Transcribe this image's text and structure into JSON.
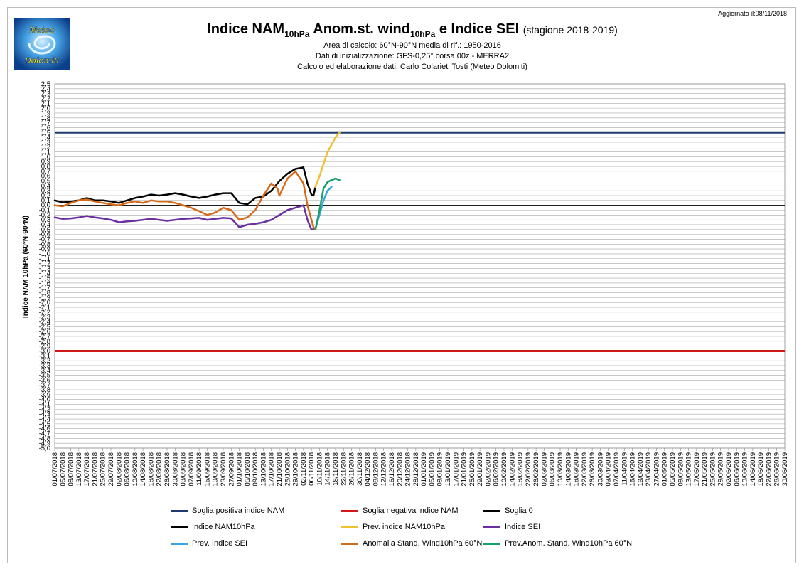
{
  "header": {
    "updated": "Aggiornato il:08/11/2018",
    "title_main": "Indice NAM",
    "title_sub1": "10hPa",
    "title_mid": " Anom.st. wind",
    "title_sub2": "10hPa",
    "title_end": " e Indice SEI ",
    "title_season": "(stagione 2018-2019)",
    "line1": "Area di calcolo: 60°N-90°N media di rif.: 1950-2016",
    "line2": "Dati di inizializzazione: GFS-0,25° corsa 00z - MERRA2",
    "line3": "Calcolo ed elaborazione dati: Carlo Colarieti Tosti (Meteo Dolomiti)"
  },
  "logo": {
    "line1": "Meteo",
    "line2": "Dolomiti"
  },
  "colors": {
    "nam_pos": "#1f3a6e",
    "nam_neg": "#d01818",
    "zero": "#000000",
    "nam": "#000000",
    "nam_prev": "#f0c030",
    "sei": "#6a2fa0",
    "sei_prev": "#3aa6dc",
    "wind": "#d46a1a",
    "wind_prev": "#1aa06a"
  },
  "chart_data": {
    "type": "line",
    "title": "Indice NAM10hPa Anom.st. wind10hPa e Indice SEI (stagione 2018-2019)",
    "ylabel": "Indice NAM 10hPa (60°N-90°N)",
    "xlabel": "",
    "ylim": [
      -5.0,
      2.5
    ],
    "y_step": 0.1,
    "grid": true,
    "legend_position": "bottom",
    "x_start": "01/07/2018",
    "x_end": "30/06/2019",
    "x_tick_every_days": 4,
    "x_ticks": [
      "01/07/2018",
      "05/07/2018",
      "09/07/2018",
      "13/07/2018",
      "17/07/2018",
      "21/07/2018",
      "25/07/2018",
      "29/07/2018",
      "02/08/2018",
      "06/08/2018",
      "10/08/2018",
      "14/08/2018",
      "18/08/2018",
      "22/08/2018",
      "26/08/2018",
      "30/08/2018",
      "03/09/2018",
      "07/09/2018",
      "11/09/2018",
      "15/09/2018",
      "19/09/2018",
      "23/09/2018",
      "27/09/2018",
      "01/10/2018",
      "05/10/2018",
      "09/10/2018",
      "13/10/2018",
      "17/10/2018",
      "21/10/2018",
      "25/10/2018",
      "29/10/2018",
      "02/11/2018",
      "06/11/2018",
      "10/11/2018",
      "14/11/2018",
      "18/11/2018",
      "22/11/2018",
      "26/11/2018",
      "30/11/2018",
      "04/12/2018",
      "08/12/2018",
      "12/12/2018",
      "16/12/2018",
      "20/12/2018",
      "24/12/2018",
      "28/12/2018",
      "01/01/2019",
      "05/01/2019",
      "09/01/2019",
      "13/01/2019",
      "17/01/2019",
      "21/01/2019",
      "25/01/2019",
      "29/01/2019",
      "02/02/2019",
      "06/02/2019",
      "10/02/2019",
      "14/02/2019",
      "18/02/2019",
      "22/02/2019",
      "26/02/2019",
      "02/03/2019",
      "06/03/2019",
      "10/03/2019",
      "14/03/2019",
      "18/03/2019",
      "22/03/2019",
      "26/03/2019",
      "30/03/2019",
      "03/04/2019",
      "07/04/2019",
      "11/04/2019",
      "15/04/2019",
      "19/04/2019",
      "23/04/2019",
      "27/04/2019",
      "01/05/2019",
      "05/05/2019",
      "09/05/2019",
      "13/05/2019",
      "17/05/2019",
      "21/05/2019",
      "25/05/2019",
      "29/05/2019",
      "02/06/2019",
      "06/06/2019",
      "10/06/2019",
      "14/06/2019",
      "18/06/2019",
      "22/06/2019",
      "26/06/2019",
      "30/06/2019"
    ],
    "series": [
      {
        "name": "Soglia positiva indice NAM",
        "kind": "hline",
        "value": 1.5,
        "color": "#1f3a6e",
        "width": 3
      },
      {
        "name": "Soglia negativa indice NAM",
        "kind": "hline",
        "value": -3.0,
        "color": "#d01818",
        "width": 3
      },
      {
        "name": "Soglia 0",
        "kind": "hline",
        "value": 0.0,
        "color": "#000000",
        "width": 1
      },
      {
        "name": "Indice NAM10hPa",
        "color": "#000000",
        "width": 2.5,
        "points": [
          [
            "01/07/2018",
            0.1
          ],
          [
            "05/07/2018",
            0.06
          ],
          [
            "09/07/2018",
            0.08
          ],
          [
            "13/07/2018",
            0.1
          ],
          [
            "17/07/2018",
            0.15
          ],
          [
            "21/07/2018",
            0.1
          ],
          [
            "25/07/2018",
            0.1
          ],
          [
            "29/07/2018",
            0.08
          ],
          [
            "02/08/2018",
            0.05
          ],
          [
            "06/08/2018",
            0.1
          ],
          [
            "10/08/2018",
            0.15
          ],
          [
            "14/08/2018",
            0.18
          ],
          [
            "18/08/2018",
            0.22
          ],
          [
            "22/08/2018",
            0.2
          ],
          [
            "26/08/2018",
            0.22
          ],
          [
            "30/08/2018",
            0.25
          ],
          [
            "03/09/2018",
            0.22
          ],
          [
            "07/09/2018",
            0.18
          ],
          [
            "11/09/2018",
            0.15
          ],
          [
            "15/09/2018",
            0.18
          ],
          [
            "19/09/2018",
            0.22
          ],
          [
            "23/09/2018",
            0.25
          ],
          [
            "27/09/2018",
            0.25
          ],
          [
            "01/10/2018",
            0.05
          ],
          [
            "05/10/2018",
            0.02
          ],
          [
            "09/10/2018",
            0.15
          ],
          [
            "13/10/2018",
            0.18
          ],
          [
            "17/10/2018",
            0.3
          ],
          [
            "21/10/2018",
            0.5
          ],
          [
            "25/10/2018",
            0.65
          ],
          [
            "29/10/2018",
            0.75
          ],
          [
            "02/11/2018",
            0.78
          ],
          [
            "04/11/2018",
            0.45
          ],
          [
            "06/11/2018",
            0.22
          ],
          [
            "07/11/2018",
            0.2
          ],
          [
            "08/11/2018",
            0.38
          ]
        ]
      },
      {
        "name": "Prev. indice NAM10hPa",
        "color": "#f0c030",
        "width": 2.5,
        "points": [
          [
            "08/11/2018",
            0.38
          ],
          [
            "10/11/2018",
            0.6
          ],
          [
            "12/11/2018",
            0.85
          ],
          [
            "14/11/2018",
            1.1
          ],
          [
            "16/11/2018",
            1.25
          ],
          [
            "18/11/2018",
            1.4
          ],
          [
            "20/11/2018",
            1.5
          ]
        ]
      },
      {
        "name": "Indice SEI",
        "color": "#6a2fa0",
        "width": 2.5,
        "points": [
          [
            "01/07/2018",
            -0.25
          ],
          [
            "05/07/2018",
            -0.28
          ],
          [
            "09/07/2018",
            -0.27
          ],
          [
            "13/07/2018",
            -0.25
          ],
          [
            "17/07/2018",
            -0.22
          ],
          [
            "21/07/2018",
            -0.25
          ],
          [
            "25/07/2018",
            -0.27
          ],
          [
            "29/07/2018",
            -0.3
          ],
          [
            "02/08/2018",
            -0.35
          ],
          [
            "06/08/2018",
            -0.33
          ],
          [
            "10/08/2018",
            -0.32
          ],
          [
            "14/08/2018",
            -0.3
          ],
          [
            "18/08/2018",
            -0.28
          ],
          [
            "22/08/2018",
            -0.3
          ],
          [
            "26/08/2018",
            -0.32
          ],
          [
            "30/08/2018",
            -0.3
          ],
          [
            "03/09/2018",
            -0.28
          ],
          [
            "07/09/2018",
            -0.27
          ],
          [
            "11/09/2018",
            -0.26
          ],
          [
            "15/09/2018",
            -0.3
          ],
          [
            "19/09/2018",
            -0.28
          ],
          [
            "23/09/2018",
            -0.26
          ],
          [
            "27/09/2018",
            -0.27
          ],
          [
            "01/10/2018",
            -0.45
          ],
          [
            "05/10/2018",
            -0.4
          ],
          [
            "09/10/2018",
            -0.38
          ],
          [
            "13/10/2018",
            -0.35
          ],
          [
            "17/10/2018",
            -0.3
          ],
          [
            "21/10/2018",
            -0.2
          ],
          [
            "25/10/2018",
            -0.1
          ],
          [
            "29/10/2018",
            -0.05
          ],
          [
            "02/11/2018",
            0.0
          ],
          [
            "04/11/2018",
            -0.3
          ],
          [
            "06/11/2018",
            -0.5
          ],
          [
            "08/11/2018",
            -0.48
          ]
        ]
      },
      {
        "name": "Prev. Indice SEI",
        "color": "#3aa6dc",
        "width": 2.5,
        "points": [
          [
            "08/11/2018",
            -0.48
          ],
          [
            "10/11/2018",
            -0.2
          ],
          [
            "12/11/2018",
            0.1
          ],
          [
            "14/11/2018",
            0.3
          ],
          [
            "16/11/2018",
            0.38
          ]
        ]
      },
      {
        "name": "Anomalia Stand. Wind10hPa 60°N",
        "color": "#d46a1a",
        "width": 2.5,
        "points": [
          [
            "01/07/2018",
            0.0
          ],
          [
            "05/07/2018",
            -0.02
          ],
          [
            "09/07/2018",
            0.05
          ],
          [
            "13/07/2018",
            0.1
          ],
          [
            "17/07/2018",
            0.12
          ],
          [
            "21/07/2018",
            0.08
          ],
          [
            "25/07/2018",
            0.05
          ],
          [
            "29/07/2018",
            0.02
          ],
          [
            "02/08/2018",
            0.0
          ],
          [
            "06/08/2018",
            0.05
          ],
          [
            "10/08/2018",
            0.08
          ],
          [
            "14/08/2018",
            0.05
          ],
          [
            "18/08/2018",
            0.1
          ],
          [
            "22/08/2018",
            0.08
          ],
          [
            "26/08/2018",
            0.08
          ],
          [
            "30/08/2018",
            0.05
          ],
          [
            "03/09/2018",
            0.0
          ],
          [
            "07/09/2018",
            -0.05
          ],
          [
            "11/09/2018",
            -0.12
          ],
          [
            "15/09/2018",
            -0.2
          ],
          [
            "19/09/2018",
            -0.15
          ],
          [
            "23/09/2018",
            -0.05
          ],
          [
            "27/09/2018",
            -0.1
          ],
          [
            "01/10/2018",
            -0.3
          ],
          [
            "05/10/2018",
            -0.25
          ],
          [
            "09/10/2018",
            -0.1
          ],
          [
            "13/10/2018",
            0.2
          ],
          [
            "17/10/2018",
            0.45
          ],
          [
            "20/10/2018",
            0.35
          ],
          [
            "21/10/2018",
            0.2
          ],
          [
            "25/10/2018",
            0.55
          ],
          [
            "29/10/2018",
            0.7
          ],
          [
            "02/11/2018",
            0.45
          ],
          [
            "04/11/2018",
            0.0
          ],
          [
            "06/11/2018",
            -0.3
          ],
          [
            "07/11/2018",
            -0.45
          ],
          [
            "08/11/2018",
            -0.5
          ]
        ]
      },
      {
        "name": "Prev.Anom. Stand. Wind10hPa 60°N",
        "color": "#1aa06a",
        "width": 2.5,
        "points": [
          [
            "08/11/2018",
            -0.5
          ],
          [
            "10/11/2018",
            -0.1
          ],
          [
            "12/11/2018",
            0.35
          ],
          [
            "14/11/2018",
            0.48
          ],
          [
            "16/11/2018",
            0.52
          ],
          [
            "18/11/2018",
            0.55
          ],
          [
            "20/11/2018",
            0.52
          ]
        ]
      }
    ]
  },
  "legend": [
    {
      "label": "Soglia positiva indice NAM",
      "color": "#1f3a6e"
    },
    {
      "label": "Soglia negativa indice NAM",
      "color": "#d01818"
    },
    {
      "label": "Soglia 0",
      "color": "#000000"
    },
    {
      "label": "Indice NAM10hPa",
      "color": "#000000"
    },
    {
      "label": "Prev. indice NAM10hPa",
      "color": "#f0c030"
    },
    {
      "label": "Indice SEI",
      "color": "#6a2fa0"
    },
    {
      "label": "Prev. Indice SEI",
      "color": "#3aa6dc"
    },
    {
      "label": "Anomalia Stand. Wind10hPa 60°N",
      "color": "#d46a1a"
    },
    {
      "label": "Prev.Anom. Stand. Wind10hPa 60°N",
      "color": "#1aa06a"
    }
  ]
}
